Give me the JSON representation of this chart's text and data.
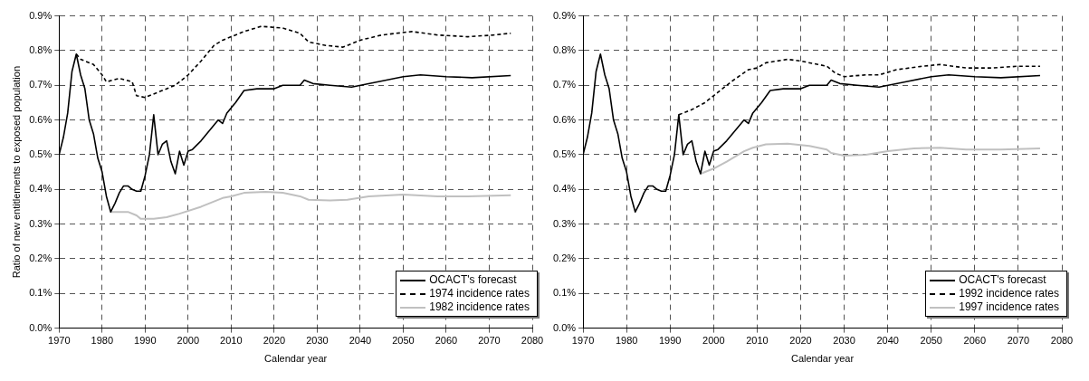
{
  "chart_data": [
    {
      "type": "line",
      "xlabel": "Calendar year",
      "ylabel": "Ratio of new entitlements to exposed population",
      "xlim": [
        1970,
        2080
      ],
      "xticks": [
        1970,
        1980,
        1990,
        2000,
        2010,
        2020,
        2030,
        2040,
        2050,
        2060,
        2070,
        2080
      ],
      "ylim": [
        0,
        0.9
      ],
      "yticks": [
        {
          "value": 0,
          "label": "0.0%"
        },
        {
          "value": 0.1,
          "label": "0.1%"
        },
        {
          "value": 0.2,
          "label": "0.2%"
        },
        {
          "value": 0.3,
          "label": "0.3%"
        },
        {
          "value": 0.4,
          "label": "0.4%"
        },
        {
          "value": 0.5,
          "label": "0.5%"
        },
        {
          "value": 0.6,
          "label": "0.6%"
        },
        {
          "value": 0.7,
          "label": "0.7%"
        },
        {
          "value": 0.8,
          "label": "0.8%"
        },
        {
          "value": 0.9,
          "label": "0.9%"
        }
      ],
      "grid": true,
      "legend": "bottom right",
      "series": [
        {
          "name": "OCACT's forecast",
          "color": "#000000",
          "line_style": "solid",
          "x": [
            1970,
            1971,
            1972,
            1973,
            1974,
            1975,
            1976,
            1977,
            1978,
            1979,
            1980,
            1981,
            1982,
            1983,
            1984,
            1985,
            1986,
            1987,
            1988,
            1989,
            1990,
            1991,
            1992,
            1993,
            1994,
            1995,
            1996,
            1997,
            1998,
            1999,
            2000,
            2001,
            2003,
            2005,
            2007,
            2008,
            2009,
            2011,
            2013,
            2016,
            2020,
            2022,
            2026,
            2027,
            2029,
            2033,
            2038,
            2044,
            2050,
            2054,
            2060,
            2066,
            2075
          ],
          "values": [
            0.5,
            0.55,
            0.62,
            0.74,
            0.79,
            0.73,
            0.69,
            0.6,
            0.56,
            0.49,
            0.45,
            0.38,
            0.335,
            0.36,
            0.39,
            0.41,
            0.41,
            0.4,
            0.395,
            0.395,
            0.44,
            0.5,
            0.615,
            0.5,
            0.53,
            0.54,
            0.48,
            0.445,
            0.51,
            0.47,
            0.51,
            0.515,
            0.54,
            0.57,
            0.6,
            0.59,
            0.62,
            0.65,
            0.685,
            0.69,
            0.69,
            0.7,
            0.7,
            0.715,
            0.705,
            0.7,
            0.695,
            0.71,
            0.725,
            0.73,
            0.725,
            0.722,
            0.728
          ]
        },
        {
          "name": "1974 incidence rates",
          "color": "#000000",
          "line_style": "dashed",
          "x": [
            1974,
            1975,
            1978,
            1980,
            1981,
            1984,
            1987,
            1988,
            1990,
            1993,
            1997,
            2000,
            2003,
            2006,
            2008,
            2010,
            2013,
            2017,
            2022,
            2026,
            2028,
            2032,
            2036,
            2040,
            2045,
            2052,
            2058,
            2065,
            2071,
            2075
          ],
          "values": [
            0.79,
            0.775,
            0.76,
            0.73,
            0.71,
            0.72,
            0.71,
            0.67,
            0.665,
            0.68,
            0.7,
            0.73,
            0.77,
            0.815,
            0.83,
            0.84,
            0.855,
            0.87,
            0.865,
            0.85,
            0.825,
            0.815,
            0.81,
            0.83,
            0.845,
            0.855,
            0.845,
            0.84,
            0.845,
            0.85
          ]
        },
        {
          "name": "1982 incidence rates",
          "color": "#c0c0c0",
          "line_style": "solid",
          "x": [
            1982,
            1986,
            1988,
            1989,
            1992,
            1995,
            1998,
            2003,
            2008,
            2010,
            2013,
            2018,
            2022,
            2026,
            2028,
            2033,
            2037,
            2042,
            2050,
            2058,
            2065,
            2075
          ],
          "values": [
            0.335,
            0.335,
            0.325,
            0.315,
            0.315,
            0.32,
            0.33,
            0.35,
            0.375,
            0.38,
            0.39,
            0.393,
            0.39,
            0.38,
            0.37,
            0.368,
            0.37,
            0.38,
            0.385,
            0.38,
            0.38,
            0.383
          ]
        }
      ]
    },
    {
      "type": "line",
      "xlabel": "Calendar year",
      "xlim": [
        1970,
        2080
      ],
      "xticks": [
        1970,
        1980,
        1990,
        2000,
        2010,
        2020,
        2030,
        2040,
        2050,
        2060,
        2070,
        2080
      ],
      "ylim": [
        0,
        0.9
      ],
      "yticks": [
        {
          "value": 0,
          "label": "0.0%"
        },
        {
          "value": 0.1,
          "label": "0.1%"
        },
        {
          "value": 0.2,
          "label": "0.2%"
        },
        {
          "value": 0.3,
          "label": "0.3%"
        },
        {
          "value": 0.4,
          "label": "0.4%"
        },
        {
          "value": 0.5,
          "label": "0.5%"
        },
        {
          "value": 0.6,
          "label": "0.6%"
        },
        {
          "value": 0.7,
          "label": "0.7%"
        },
        {
          "value": 0.8,
          "label": "0.8%"
        },
        {
          "value": 0.9,
          "label": "0.9%"
        }
      ],
      "grid": true,
      "legend": "bottom right",
      "series": [
        {
          "name": "OCACT's forecast",
          "color": "#000000",
          "line_style": "solid",
          "x": [
            1970,
            1971,
            1972,
            1973,
            1974,
            1975,
            1976,
            1977,
            1978,
            1979,
            1980,
            1981,
            1982,
            1983,
            1984,
            1985,
            1986,
            1987,
            1988,
            1989,
            1990,
            1991,
            1992,
            1993,
            1994,
            1995,
            1996,
            1997,
            1998,
            1999,
            2000,
            2001,
            2003,
            2005,
            2007,
            2008,
            2009,
            2011,
            2013,
            2016,
            2020,
            2022,
            2026,
            2027,
            2029,
            2033,
            2038,
            2044,
            2050,
            2054,
            2060,
            2066,
            2075
          ],
          "values": [
            0.5,
            0.55,
            0.62,
            0.74,
            0.79,
            0.73,
            0.69,
            0.6,
            0.56,
            0.49,
            0.45,
            0.38,
            0.335,
            0.36,
            0.39,
            0.41,
            0.41,
            0.4,
            0.395,
            0.395,
            0.44,
            0.5,
            0.615,
            0.5,
            0.53,
            0.54,
            0.48,
            0.445,
            0.51,
            0.47,
            0.51,
            0.515,
            0.54,
            0.57,
            0.6,
            0.59,
            0.62,
            0.65,
            0.685,
            0.69,
            0.69,
            0.7,
            0.7,
            0.715,
            0.705,
            0.7,
            0.695,
            0.71,
            0.725,
            0.73,
            0.725,
            0.722,
            0.728
          ]
        },
        {
          "name": "1992 incidence rates",
          "color": "#000000",
          "line_style": "dashed",
          "x": [
            1992,
            1995,
            1998,
            2001,
            2004,
            2008,
            2010,
            2012,
            2017,
            2020,
            2024,
            2026,
            2028,
            2030,
            2035,
            2038,
            2042,
            2048,
            2052,
            2058,
            2064,
            2070,
            2075
          ],
          "values": [
            0.615,
            0.63,
            0.65,
            0.68,
            0.71,
            0.745,
            0.75,
            0.765,
            0.775,
            0.77,
            0.76,
            0.755,
            0.735,
            0.725,
            0.73,
            0.73,
            0.745,
            0.755,
            0.76,
            0.75,
            0.75,
            0.755,
            0.755
          ]
        },
        {
          "name": "1997 incidence rates",
          "color": "#c0c0c0",
          "line_style": "solid",
          "x": [
            1997,
            2000,
            2003,
            2007,
            2009,
            2012,
            2017,
            2022,
            2026,
            2027,
            2030,
            2035,
            2040,
            2046,
            2052,
            2058,
            2066,
            2075
          ],
          "values": [
            0.445,
            0.46,
            0.48,
            0.51,
            0.52,
            0.53,
            0.532,
            0.525,
            0.515,
            0.505,
            0.497,
            0.5,
            0.51,
            0.518,
            0.52,
            0.515,
            0.515,
            0.518
          ]
        }
      ]
    }
  ]
}
